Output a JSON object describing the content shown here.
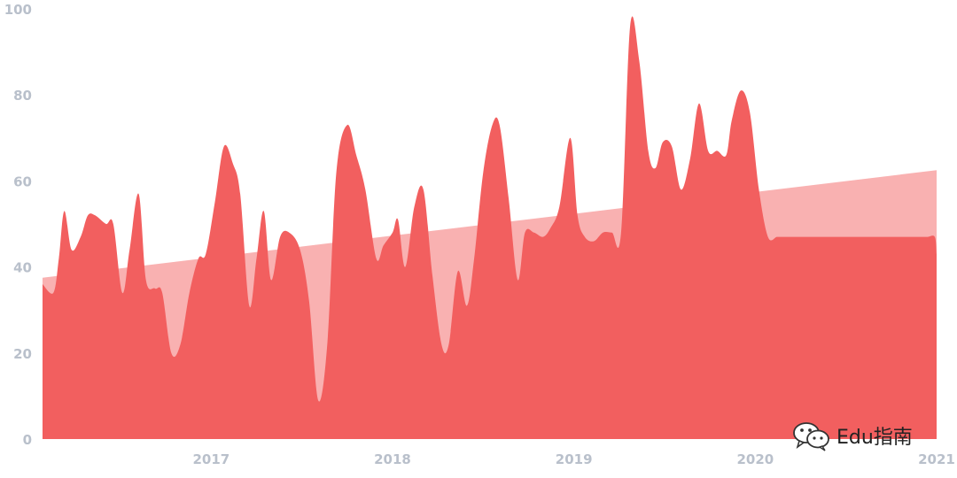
{
  "chart_data": {
    "type": "area",
    "title": "",
    "xlabel": "",
    "ylabel": "",
    "xlim": [
      2016.07,
      2021.0
    ],
    "ylim": [
      0,
      100
    ],
    "x_ticks": [
      "2017",
      "2018",
      "2019",
      "2020",
      "2021"
    ],
    "y_ticks": [
      "0",
      "20",
      "40",
      "60",
      "80",
      "100"
    ],
    "grid": false,
    "legend": "none",
    "colors": {
      "series": "#f25f5f",
      "trend": "#f9b1b1",
      "tick_text": "#b9c0cb"
    },
    "trend": {
      "x": [
        2016.07,
        2021.0
      ],
      "y": [
        37.5,
        62.5
      ]
    },
    "series": [
      {
        "x": [
          2016.07,
          2016.13,
          2016.16,
          2016.19,
          2016.23,
          2016.28,
          2016.32,
          2016.36,
          2016.42,
          2016.46,
          2016.51,
          2016.55,
          2016.6,
          2016.64,
          2016.69,
          2016.73,
          2016.78,
          2016.83,
          2016.88,
          2016.93,
          2016.97,
          2017.02,
          2017.07,
          2017.12,
          2017.16,
          2017.21,
          2017.25,
          2017.29,
          2017.33,
          2017.38,
          2017.43,
          2017.49,
          2017.54,
          2017.59,
          2017.64,
          2017.69,
          2017.75,
          2017.8,
          2017.85,
          2017.91,
          2017.95,
          2018.0,
          2018.03,
          2018.07,
          2018.12,
          2018.17,
          2018.22,
          2018.27,
          2018.31,
          2018.36,
          2018.41,
          2018.45,
          2018.5,
          2018.55,
          2018.59,
          2018.64,
          2018.69,
          2018.73,
          2018.78,
          2018.83,
          2018.87,
          2018.92,
          2018.98,
          2019.02,
          2019.06,
          2019.11,
          2019.16,
          2019.21,
          2019.26,
          2019.31,
          2019.36,
          2019.41,
          2019.45,
          2019.49,
          2019.54,
          2019.59,
          2019.64,
          2019.69,
          2019.74,
          2019.79,
          2019.84,
          2019.87,
          2019.92,
          2019.97,
          2020.02,
          2020.07,
          2020.12,
          2020.16,
          2020.2,
          2020.27,
          2020.31,
          2020.37,
          2020.43,
          2020.48,
          2020.52,
          2020.57,
          2020.63,
          2020.67,
          2020.71,
          2020.76,
          2020.81,
          2020.85,
          2020.88,
          2020.91,
          2020.95,
          2020.99,
          2021.0
        ],
        "y": [
          36,
          34,
          42,
          53,
          44,
          47,
          52,
          52,
          50,
          50,
          34,
          44,
          57,
          37,
          35,
          34,
          20,
          22,
          34,
          42,
          43,
          55,
          68,
          64,
          57,
          31,
          42,
          53,
          37,
          47,
          48,
          44,
          32,
          9,
          22,
          62,
          73,
          66,
          58,
          42,
          45,
          48,
          51,
          40,
          54,
          58,
          38,
          22,
          22,
          39,
          31,
          42,
          62,
          73,
          73,
          56,
          37,
          48,
          48,
          47,
          49,
          54,
          70,
          52,
          47,
          46,
          48,
          48,
          48,
          96,
          88,
          67,
          63,
          69,
          68,
          58,
          65,
          78,
          67,
          67,
          66,
          74,
          81,
          76,
          58,
          47,
          47,
          47,
          47,
          47,
          47,
          47,
          47,
          47,
          47,
          47,
          47,
          47,
          47,
          47,
          47,
          47,
          47,
          47,
          47,
          47,
          43
        ]
      }
    ]
  },
  "watermark": {
    "text": "Edu指南",
    "icon": "wechat-icon"
  }
}
